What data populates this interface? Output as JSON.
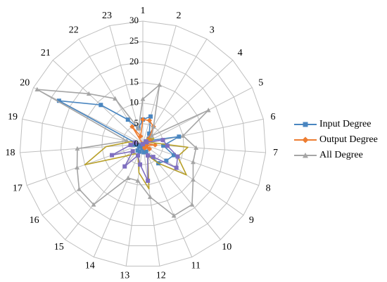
{
  "chart_data": {
    "type": "radar",
    "categories": [
      "1",
      "2",
      "3",
      "4",
      "5",
      "6",
      "7",
      "8",
      "9",
      "10",
      "11",
      "12",
      "13",
      "14",
      "15",
      "16",
      "17",
      "18",
      "19",
      "20",
      "21",
      "22",
      "23"
    ],
    "rlim": [
      0,
      30
    ],
    "r_ticks": [
      0,
      5,
      10,
      15,
      20,
      25,
      30
    ],
    "r_tick_labels": [
      "0",
      "5",
      "10",
      "15",
      "20",
      "25",
      "30"
    ],
    "grid": true,
    "legend_position": "right",
    "series": [
      {
        "name": "Input Degree",
        "color": "#4a86c0",
        "marker": "square",
        "values": [
          6,
          7,
          3,
          2,
          2,
          9,
          5,
          8,
          7,
          6,
          2,
          2,
          1,
          2,
          2,
          1,
          1,
          2,
          2,
          23,
          14,
          7,
          4
        ]
      },
      {
        "name": "Output Degree",
        "color": "#ed7d31",
        "marker": "diamond",
        "values": [
          6,
          6,
          5,
          2,
          2,
          1,
          3,
          1,
          2,
          1,
          1,
          0,
          0,
          0,
          0,
          0,
          0,
          0,
          0,
          0,
          0,
          5,
          2
        ]
      },
      {
        "name": "All Degree",
        "color": "#a5a5a5",
        "marker": "triangle",
        "values": [
          11,
          15,
          5,
          3,
          18,
          10,
          13,
          13,
          15,
          19,
          19,
          13,
          9,
          9,
          19,
          19,
          17,
          16,
          4,
          29,
          18,
          13,
          4
        ]
      },
      {
        "name": "",
        "color": "#b8a02a",
        "marker": "none",
        "values": [
          0,
          0,
          1,
          2,
          3,
          2,
          11,
          9,
          13,
          6,
          3,
          11,
          7,
          3,
          3,
          5,
          15,
          9,
          3,
          0,
          0,
          0,
          0
        ]
      },
      {
        "name": "",
        "color": "#7f6fc0",
        "marker": "square",
        "values": [
          0,
          0,
          0,
          1,
          1,
          5,
          6,
          9,
          10,
          4,
          3,
          9,
          5,
          3,
          7,
          3,
          8,
          3,
          2,
          0,
          0,
          0,
          0
        ]
      }
    ]
  }
}
